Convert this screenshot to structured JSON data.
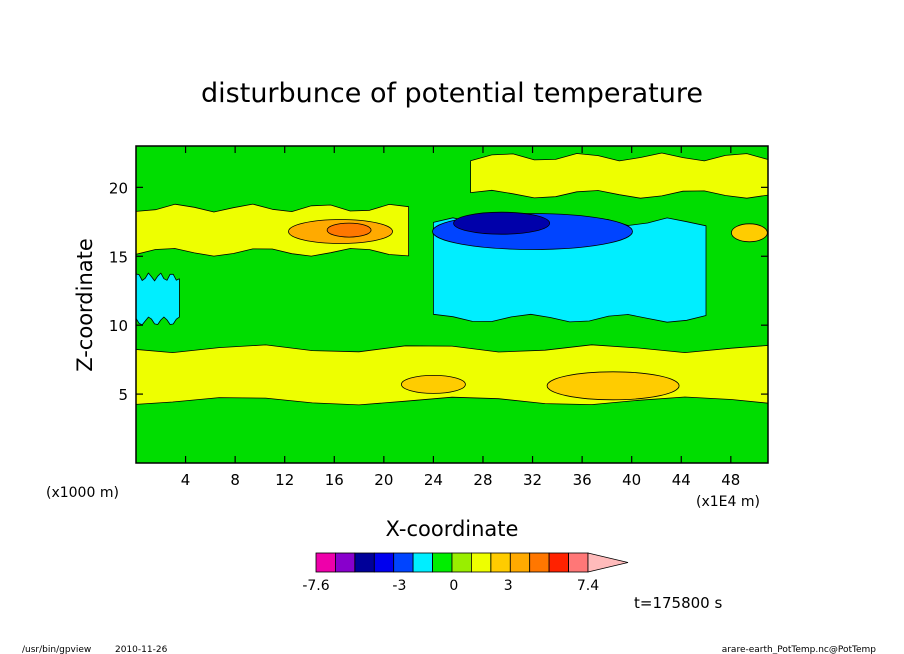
{
  "chart_data": {
    "type": "heatmap",
    "subtype": "filled-contour",
    "title": "disturbunce of potential temperature",
    "xlabel": "X-coordinate",
    "ylabel": "Z-coordinate",
    "x_unit_label": "(x1E4 m)",
    "y_unit_label": "(x1000 m)",
    "xlim": [
      0,
      51
    ],
    "ylim": [
      0,
      23
    ],
    "x_ticks": [
      4,
      8,
      12,
      16,
      20,
      24,
      28,
      32,
      36,
      40,
      44,
      48
    ],
    "y_ticks": [
      5,
      10,
      15,
      20
    ],
    "grid": false,
    "background_level_color": "#00dd00",
    "bands": [
      {
        "name": "lower-warm-layer",
        "z0": 4.5,
        "z1": 8.3,
        "level_color": "#eeff00"
      },
      {
        "name": "upper-warm-left",
        "z0": 15.3,
        "z1": 18.5,
        "x0": 0,
        "x1": 22,
        "level_color": "#eeff00"
      },
      {
        "name": "upper-right-warm",
        "z0": 19.5,
        "z1": 22.2,
        "x0": 27,
        "x1": 51,
        "level_color": "#eeff00"
      },
      {
        "name": "cold-tongue",
        "z0": 10.5,
        "z1": 17.5,
        "x0": 24,
        "x1": 46,
        "level_color": "#00eeff"
      },
      {
        "name": "left-cold-patch",
        "z0": 10.3,
        "z1": 13.5,
        "x0": 0,
        "x1": 3.5,
        "level_color": "#00eeff"
      }
    ],
    "features": [
      {
        "name": "warm-core-upper",
        "x": 16.5,
        "z": 16.8,
        "value": 2.5,
        "level_color": "#ffaa00"
      },
      {
        "name": "warm-core-inner",
        "x": 17.2,
        "z": 16.9,
        "value": 3.5,
        "level_color": "#ff7700"
      },
      {
        "name": "cold-core-outer",
        "x": 32,
        "z": 16.8,
        "value": -2.5,
        "level_color": "#0044ff"
      },
      {
        "name": "cold-core-inner",
        "x": 29.5,
        "z": 17.4,
        "value": -3.5,
        "level_color": "#0000aa"
      },
      {
        "name": "lower-warm-right",
        "x": 38.5,
        "z": 5.6,
        "value": 1.2,
        "level_color": "#ffcc00"
      },
      {
        "name": "lower-warm-mid",
        "x": 24,
        "z": 5.7,
        "value": 1.0,
        "level_color": "#ffcc00"
      },
      {
        "name": "upper-warm-right-edge",
        "x": 49.5,
        "z": 16.7,
        "value": 1.0,
        "level_color": "#ffcc00"
      }
    ],
    "colorbar": {
      "min": -7.6,
      "max": 7.4,
      "tick_labels": [
        "-7.6",
        "-3",
        "0",
        "3",
        "7.4"
      ],
      "tick_values": [
        -7.6,
        -3,
        0,
        3,
        7.4
      ],
      "colors": [
        "#ee00aa",
        "#8800cc",
        "#000099",
        "#0000ee",
        "#0044ff",
        "#00eeff",
        "#00ee00",
        "#99ee00",
        "#eeff00",
        "#ffcc00",
        "#ffaa00",
        "#ff7700",
        "#ff2200",
        "#ff7777"
      ],
      "extend_color": "#ffbbbb"
    },
    "time_label": "t=175800 s"
  },
  "footer": {
    "program": "/usr/bin/gpview",
    "date": "2010-11-26",
    "source": "arare-earth_PotTemp.nc@PotTemp"
  }
}
